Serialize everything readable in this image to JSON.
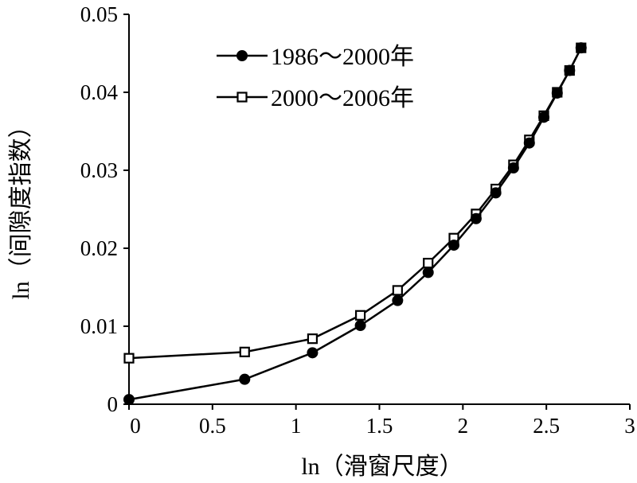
{
  "chart_data": {
    "type": "line",
    "xlabel": "ln（滑窗尺度）",
    "ylabel": "ln（间隙度指数）",
    "xlim": [
      0,
      3
    ],
    "ylim": [
      0,
      0.05
    ],
    "x_ticks": [
      "0",
      "0.5",
      "1",
      "1.5",
      "2",
      "2.5",
      "3"
    ],
    "y_ticks": [
      "0",
      "0.01",
      "0.02",
      "0.03",
      "0.04",
      "0.05"
    ],
    "legend_position": "top-left",
    "grid": false,
    "series": [
      {
        "name": "1986～2000年",
        "marker": "filled-circle",
        "color": "#000000",
        "x": [
          0,
          0.693,
          1.099,
          1.386,
          1.609,
          1.792,
          1.946,
          2.079,
          2.197,
          2.303,
          2.398,
          2.485,
          2.565,
          2.639,
          2.708
        ],
        "y": [
          0.0006,
          0.0032,
          0.0066,
          0.0101,
          0.0133,
          0.0169,
          0.0204,
          0.0238,
          0.0271,
          0.0303,
          0.0335,
          0.0368,
          0.0399,
          0.0428,
          0.0457
        ]
      },
      {
        "name": "2000～2006年",
        "marker": "open-square",
        "color": "#000000",
        "x": [
          0,
          0.693,
          1.099,
          1.386,
          1.609,
          1.792,
          1.946,
          2.079,
          2.197,
          2.303,
          2.398,
          2.485,
          2.565,
          2.639,
          2.708
        ],
        "y": [
          0.0059,
          0.0067,
          0.0084,
          0.0114,
          0.0146,
          0.0181,
          0.0213,
          0.0244,
          0.0276,
          0.0307,
          0.0339,
          0.037,
          0.04,
          0.0428,
          0.0457
        ]
      }
    ]
  }
}
